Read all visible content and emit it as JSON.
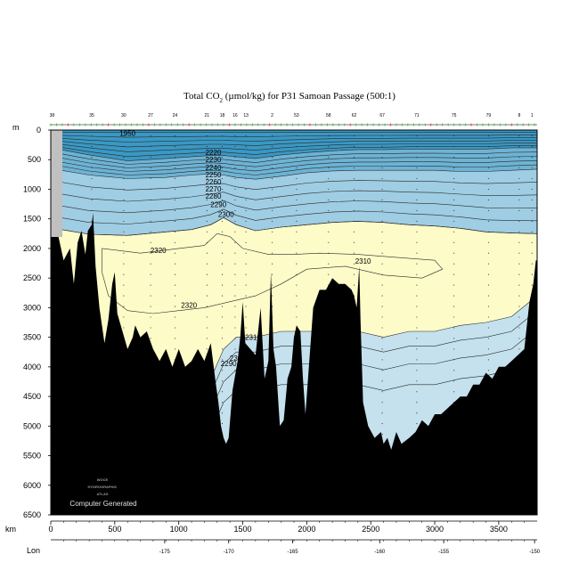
{
  "chart_data": {
    "type": "contour-section",
    "title_main": "Total CO",
    "title_sub": "2",
    "title_rest": " (µmol/kg) for P31 Samoan Passage (500:1)",
    "depth_unit": "m",
    "ylim": [
      0,
      6500
    ],
    "y_ticks": [
      "0",
      "500",
      "1000",
      "1500",
      "2000",
      "2500",
      "3000",
      "3500",
      "4000",
      "4500",
      "5000",
      "5500",
      "6000",
      "6500"
    ],
    "x_unit": "km",
    "xlim": [
      0,
      3800
    ],
    "x_ticks": [
      "0",
      "500",
      "1000",
      "1500",
      "2000",
      "2500",
      "3000",
      "3500"
    ],
    "lon_label": "Lon",
    "lon_ticks": [
      {
        "km": 890,
        "label": "-175"
      },
      {
        "km": 1390,
        "label": "-170"
      },
      {
        "km": 1890,
        "label": "-165"
      },
      {
        "km": 2570,
        "label": "-160"
      },
      {
        "km": 3070,
        "label": "-155"
      },
      {
        "km": 3780,
        "label": "-150"
      }
    ],
    "station_numbers": [
      {
        "km": 10,
        "label": "38"
      },
      {
        "km": 320,
        "label": "35"
      },
      {
        "km": 570,
        "label": "30"
      },
      {
        "km": 780,
        "label": "27"
      },
      {
        "km": 970,
        "label": "24"
      },
      {
        "km": 1220,
        "label": "21"
      },
      {
        "km": 1340,
        "label": "18"
      },
      {
        "km": 1440,
        "label": "16"
      },
      {
        "km": 1525,
        "label": "13"
      },
      {
        "km": 1730,
        "label": "2"
      },
      {
        "km": 1920,
        "label": "53"
      },
      {
        "km": 2170,
        "label": "58"
      },
      {
        "km": 2370,
        "label": "62"
      },
      {
        "km": 2590,
        "label": "67"
      },
      {
        "km": 2860,
        "label": "71"
      },
      {
        "km": 3150,
        "label": "75"
      },
      {
        "km": 3420,
        "label": "79"
      },
      {
        "km": 3660,
        "label": "8"
      },
      {
        "km": 3760,
        "label": "1"
      }
    ],
    "levels": [
      1950,
      2230,
      2240,
      2250,
      2260,
      2270,
      2280,
      2290,
      2300,
      2310,
      2320
    ],
    "fill_bands": [
      {
        "range": "<2200",
        "color": "#3a98c4"
      },
      {
        "range": "2200-2250",
        "color": "#6db3d4"
      },
      {
        "range": "2250-2300",
        "color": "#9fcde3"
      },
      {
        "range": "2300-2310",
        "color": "#c4e1ed"
      },
      {
        "range": ">=2310",
        "color": "#fdfbc8"
      }
    ],
    "contour_labels": [
      {
        "text": "1950",
        "x": 600,
        "y": 100
      },
      {
        "text": "2220",
        "x": 1270,
        "y": 420
      },
      {
        "text": "2230",
        "x": 1270,
        "y": 540
      },
      {
        "text": "2240",
        "x": 1270,
        "y": 680
      },
      {
        "text": "2250",
        "x": 1270,
        "y": 800
      },
      {
        "text": "2260",
        "x": 1270,
        "y": 920
      },
      {
        "text": "2270",
        "x": 1270,
        "y": 1040
      },
      {
        "text": "2280",
        "x": 1270,
        "y": 1160
      },
      {
        "text": "2290",
        "x": 1310,
        "y": 1300
      },
      {
        "text": "2300",
        "x": 1370,
        "y": 1470
      },
      {
        "text": "2320",
        "x": 840,
        "y": 2080
      },
      {
        "text": "2310",
        "x": 2440,
        "y": 2260
      },
      {
        "text": "2320",
        "x": 1080,
        "y": 3000
      },
      {
        "text": "2310",
        "x": 1580,
        "y": 3540
      },
      {
        "text": "2300",
        "x": 1460,
        "y": 3900
      },
      {
        "text": "2290",
        "x": 1390,
        "y": 3990
      },
      {
        "text": "2280",
        "x": 1500,
        "y": 4280
      }
    ],
    "bathymetry": [
      [
        0,
        1600
      ],
      [
        60,
        1800
      ],
      [
        100,
        2200
      ],
      [
        150,
        2000
      ],
      [
        180,
        2600
      ],
      [
        210,
        1900
      ],
      [
        240,
        1700
      ],
      [
        270,
        2100
      ],
      [
        290,
        1700
      ],
      [
        320,
        1600
      ],
      [
        330,
        1400
      ],
      [
        350,
        2300
      ],
      [
        380,
        3000
      ],
      [
        420,
        3600
      ],
      [
        450,
        3200
      ],
      [
        480,
        2600
      ],
      [
        500,
        2400
      ],
      [
        520,
        3100
      ],
      [
        560,
        3400
      ],
      [
        600,
        3700
      ],
      [
        640,
        3500
      ],
      [
        660,
        3300
      ],
      [
        700,
        3500
      ],
      [
        750,
        3400
      ],
      [
        800,
        3700
      ],
      [
        850,
        3900
      ],
      [
        900,
        3700
      ],
      [
        950,
        4000
      ],
      [
        1000,
        3700
      ],
      [
        1050,
        4000
      ],
      [
        1100,
        3900
      ],
      [
        1150,
        3700
      ],
      [
        1200,
        3900
      ],
      [
        1250,
        3600
      ],
      [
        1290,
        4300
      ],
      [
        1310,
        4600
      ],
      [
        1330,
        5000
      ],
      [
        1350,
        5200
      ],
      [
        1370,
        5300
      ],
      [
        1390,
        5200
      ],
      [
        1420,
        4400
      ],
      [
        1460,
        3900
      ],
      [
        1480,
        3500
      ],
      [
        1500,
        2900
      ],
      [
        1520,
        3600
      ],
      [
        1560,
        3700
      ],
      [
        1600,
        3800
      ],
      [
        1640,
        3000
      ],
      [
        1670,
        4200
      ],
      [
        1700,
        3900
      ],
      [
        1720,
        2400
      ],
      [
        1740,
        3700
      ],
      [
        1760,
        4000
      ],
      [
        1790,
        5000
      ],
      [
        1820,
        4900
      ],
      [
        1850,
        4200
      ],
      [
        1880,
        4000
      ],
      [
        1900,
        3500
      ],
      [
        1920,
        3300
      ],
      [
        1950,
        3400
      ],
      [
        1970,
        4200
      ],
      [
        1990,
        4800
      ],
      [
        2010,
        4200
      ],
      [
        2050,
        3000
      ],
      [
        2100,
        2700
      ],
      [
        2150,
        2700
      ],
      [
        2200,
        2500
      ],
      [
        2250,
        2600
      ],
      [
        2300,
        2600
      ],
      [
        2350,
        2700
      ],
      [
        2370,
        2800
      ],
      [
        2390,
        3000
      ],
      [
        2410,
        2300
      ],
      [
        2420,
        3200
      ],
      [
        2440,
        4600
      ],
      [
        2480,
        5000
      ],
      [
        2530,
        5200
      ],
      [
        2580,
        5100
      ],
      [
        2600,
        5300
      ],
      [
        2630,
        5200
      ],
      [
        2660,
        5400
      ],
      [
        2700,
        5100
      ],
      [
        2740,
        5300
      ],
      [
        2800,
        5200
      ],
      [
        2850,
        5100
      ],
      [
        2900,
        4900
      ],
      [
        2950,
        5000
      ],
      [
        3000,
        4800
      ],
      [
        3050,
        4800
      ],
      [
        3100,
        4700
      ],
      [
        3150,
        4600
      ],
      [
        3200,
        4500
      ],
      [
        3250,
        4500
      ],
      [
        3300,
        4300
      ],
      [
        3350,
        4300
      ],
      [
        3400,
        4100
      ],
      [
        3450,
        4200
      ],
      [
        3500,
        4000
      ],
      [
        3550,
        4000
      ],
      [
        3600,
        3900
      ],
      [
        3650,
        3800
      ],
      [
        3700,
        3700
      ],
      [
        3740,
        2900
      ],
      [
        3770,
        2600
      ],
      [
        3790,
        2200
      ]
    ]
  },
  "watermark": {
    "line1": "WOCE",
    "line2": "HYDROGRAPHIC",
    "line3": "ATLAS",
    "credit": "Computer Generated"
  },
  "colors": {
    "land": "#000000",
    "left_strip": "#c0c0c0",
    "contour": "#2a2a2a",
    "station_marker_green": "#33aa33",
    "station_marker_red": "#cc3333"
  }
}
